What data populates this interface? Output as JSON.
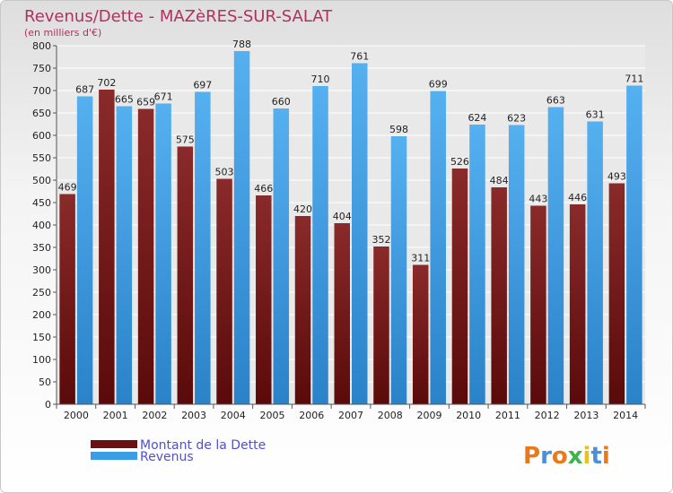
{
  "chart_data": {
    "type": "bar",
    "title": "Revenus/Dette - MAZèRES-SUR-SALAT",
    "subtitle": "(en milliers d'€)",
    "xlabel": "",
    "ylabel": "",
    "ylim": [
      0,
      800
    ],
    "ytick_step": 50,
    "grid": true,
    "legend_position": "bottom-left",
    "categories": [
      "2000",
      "2001",
      "2002",
      "2003",
      "2004",
      "2005",
      "2006",
      "2007",
      "2008",
      "2009",
      "2010",
      "2011",
      "2012",
      "2013",
      "2014"
    ],
    "series": [
      {
        "name": "Montant de la Dette",
        "color": "#7a1c1c",
        "values": [
          469,
          702,
          659,
          575,
          503,
          466,
          420,
          404,
          352,
          311,
          526,
          484,
          443,
          446,
          493
        ]
      },
      {
        "name": "Revenus",
        "color": "#3a9ee4",
        "values": [
          687,
          665,
          671,
          697,
          788,
          660,
          710,
          761,
          598,
          699,
          624,
          623,
          663,
          631,
          711
        ]
      }
    ]
  },
  "logo": {
    "letters": [
      "P",
      "r",
      "o",
      "x",
      "i",
      "t",
      "i"
    ],
    "colors": [
      "#e87a1c",
      "#4a90d9",
      "#e87a1c",
      "#3fb34f",
      "#e8c21c",
      "#4a90d9",
      "#e87a1c"
    ]
  }
}
